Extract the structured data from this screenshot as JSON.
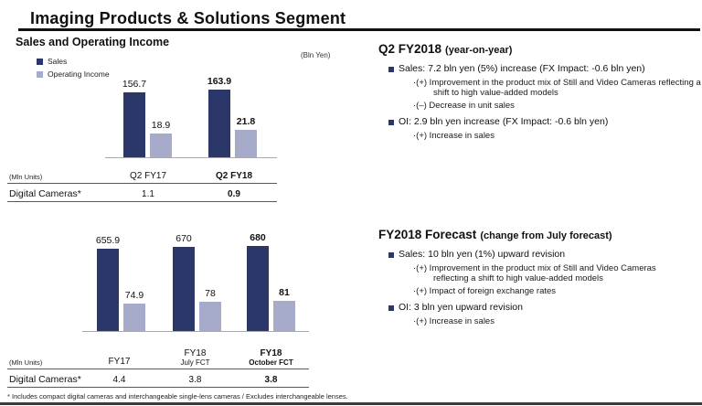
{
  "slide": {
    "title": "Imaging Products & Solutions Segment",
    "footnote": "* Includes compact digital cameras and interchangeable single-lens cameras / Excludes interchangeable lenses."
  },
  "colors": {
    "sales": "#2b3768",
    "operating_income": "#a5abc9",
    "axis_line": "#a9a9b0",
    "table_line": "#58585e"
  },
  "left": {
    "section_title": "Sales and Operating Income",
    "unit_note": "(Bln Yen)",
    "legend": [
      {
        "label": "Sales",
        "color_key": "sales"
      },
      {
        "label": "Operating Income",
        "color_key": "operating_income"
      }
    ]
  },
  "chart_data": [
    {
      "type": "bar",
      "title": "Q2 Sales and Operating Income",
      "unit": "Bln Yen",
      "grid": false,
      "legend_position": "top-left",
      "ylim": [
        0,
        180
      ],
      "categories": [
        {
          "label": "Q2 FY17",
          "sublabel": "",
          "emphasis": false
        },
        {
          "label": "Q2 FY18",
          "sublabel": "",
          "emphasis": true
        }
      ],
      "series": [
        {
          "name": "Sales",
          "values": [
            156.7,
            163.9
          ]
        },
        {
          "name": "Operating Income",
          "values": [
            18.9,
            21.8
          ]
        }
      ],
      "table": {
        "unit_label": "(Mln Units)",
        "row_label": "Digital Cameras*",
        "values": [
          "1.1",
          "0.9"
        ]
      }
    },
    {
      "type": "bar",
      "title": "Full Year Sales and Operating Income Forecast",
      "unit": "Bln Yen",
      "grid": false,
      "legend_position": "top-left",
      "ylim": [
        0,
        740
      ],
      "categories": [
        {
          "label": "FY17",
          "sublabel": "",
          "emphasis": false
        },
        {
          "label": "FY18",
          "sublabel": "July FCT",
          "emphasis": false
        },
        {
          "label": "FY18",
          "sublabel": "October FCT",
          "emphasis": true
        }
      ],
      "series": [
        {
          "name": "Sales",
          "values": [
            655.9,
            670,
            680
          ]
        },
        {
          "name": "Operating Income",
          "values": [
            74.9,
            78,
            81
          ]
        }
      ],
      "table": {
        "unit_label": "(Mln Units)",
        "row_label": "Digital Cameras*",
        "values": [
          "4.4",
          "3.8",
          "3.8"
        ]
      }
    }
  ],
  "right": {
    "sections": [
      {
        "heading": "Q2 FY2018",
        "heading_note": "(year-on-year)",
        "bullets": [
          {
            "text": "Sales: 7.2 bln yen (5%) increase (FX Impact: -0.6 bln yen)",
            "subs": [
              {
                "lines": [
                  "·(+) Improvement in the product mix of Still and Video Cameras reflecting a",
                  "shift to high value-added models"
                ]
              },
              {
                "lines": [
                  "·(–) Decrease in unit sales"
                ]
              }
            ]
          },
          {
            "text": "OI: 2.9 bln yen increase (FX Impact: -0.6 bln yen)",
            "subs": [
              {
                "lines": [
                  "·(+) Increase in sales"
                ]
              }
            ]
          }
        ]
      },
      {
        "heading": "FY2018 Forecast",
        "heading_note": "(change from July forecast)",
        "bullets": [
          {
            "text": "Sales: 10 bln yen (1%) upward revision",
            "subs": [
              {
                "lines": [
                  "·(+) Improvement in the product mix of Still and Video Cameras",
                  "reflecting a shift to high value-added models"
                ]
              },
              {
                "lines": [
                  "·(+) Impact of foreign exchange rates"
                ]
              }
            ]
          },
          {
            "text": "OI: 3 bln yen upward revision",
            "subs": [
              {
                "lines": [
                  "·(+) Increase in sales"
                ]
              }
            ]
          }
        ]
      }
    ]
  }
}
